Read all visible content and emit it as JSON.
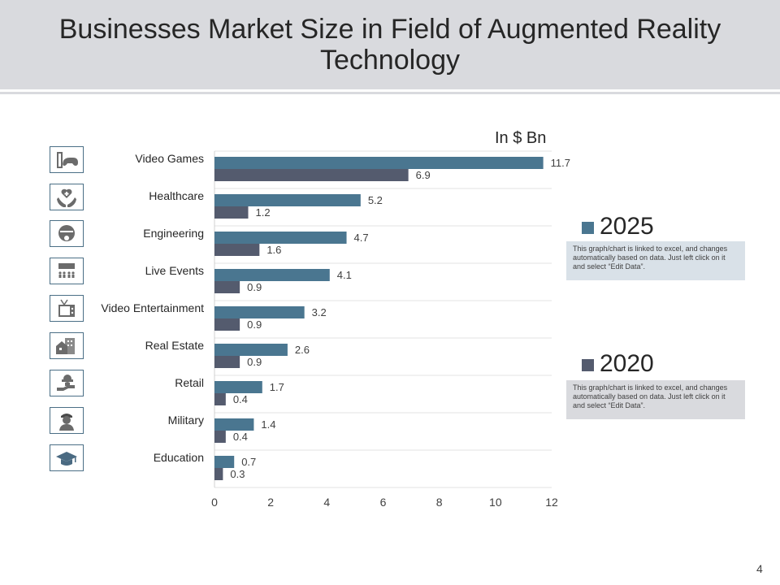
{
  "slide": {
    "title": "Businesses Market Size in Field of Augmented Reality Technology",
    "unit_label": "In $ Bn",
    "page_number": "4"
  },
  "icons": [
    "video-game-icon",
    "healthcare-icon",
    "engineering-icon",
    "live-events-icon",
    "tv-icon",
    "real-estate-icon",
    "retail-icon",
    "military-icon",
    "education-icon"
  ],
  "legend": {
    "items": [
      {
        "label": "2025",
        "color": "#4a7690",
        "note": "This graph/chart is linked to excel, and changes automatically based on data. Just left click on it and select “Edit Data”."
      },
      {
        "label": "2020",
        "color": "#545b6e",
        "note": "This graph/chart is linked to excel, and changes automatically based on data. Just left click on it and select “Edit Data”."
      }
    ]
  },
  "chart_data": {
    "type": "bar",
    "orientation": "horizontal",
    "title": "Businesses Market Size in Field of Augmented Reality Technology",
    "xlabel": "In $ Bn",
    "ylabel": "",
    "categories": [
      "Video Games",
      "Healthcare",
      "Engineering",
      "Live Events",
      "Video Entertainment",
      "Real Estate",
      "Retail",
      "Military",
      "Education"
    ],
    "series": [
      {
        "name": "2025",
        "color": "#4a7690",
        "values": [
          11.7,
          5.2,
          4.7,
          4.1,
          3.2,
          2.6,
          1.7,
          1.4,
          0.7
        ]
      },
      {
        "name": "2020",
        "color": "#545b6e",
        "values": [
          6.9,
          1.2,
          1.6,
          0.9,
          0.9,
          0.9,
          0.4,
          0.4,
          0.3
        ]
      }
    ],
    "xlim": [
      0,
      12
    ],
    "xticks": [
      "0",
      "2",
      "4",
      "6",
      "8",
      "10",
      "12"
    ],
    "grid": true,
    "legend_position": "right"
  }
}
